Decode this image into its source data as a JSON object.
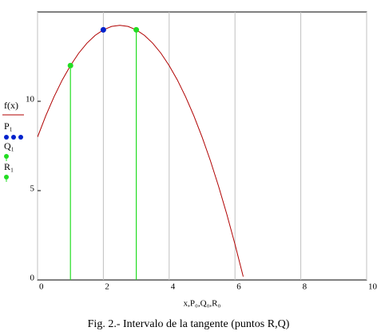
{
  "chart_data": {
    "type": "line",
    "caption": "Fig. 2.- Intervalo de la tangente (puntos R,Q)",
    "xlabel": "x,P₀,Q₀,R₀",
    "xlim": [
      0,
      10
    ],
    "ylim": [
      0,
      15
    ],
    "xticks": [
      0,
      2,
      4,
      6,
      8,
      10
    ],
    "yticks": [
      0,
      5,
      10
    ],
    "grid": "x",
    "series": [
      {
        "name": "f(x)",
        "color": "#b00000",
        "style": "line",
        "x": [
          0,
          0.25,
          0.5,
          0.75,
          1,
          1.25,
          1.5,
          1.75,
          2,
          2.25,
          2.5,
          2.75,
          3,
          3.25,
          3.5,
          3.75,
          4,
          4.25,
          4.5,
          4.75,
          5,
          5.25,
          5.5,
          5.75,
          6,
          6.25
        ],
        "values": [
          8,
          9.19,
          10.25,
          11.19,
          12,
          12.69,
          13.25,
          13.69,
          14,
          14.19,
          14.25,
          14.19,
          14,
          13.69,
          13.25,
          12.69,
          12,
          11.19,
          10.25,
          9.19,
          8,
          6.69,
          5.25,
          3.69,
          2,
          0.19
        ]
      },
      {
        "name": "P₁",
        "color": "#0022cc",
        "style": "points",
        "x": [
          2
        ],
        "values": [
          14
        ]
      },
      {
        "name": "Q₁",
        "color": "#22dd22",
        "style": "stem",
        "x": [
          1
        ],
        "values": [
          12
        ]
      },
      {
        "name": "R₁",
        "color": "#22dd22",
        "style": "stem",
        "x": [
          3
        ],
        "values": [
          14
        ]
      }
    ]
  }
}
